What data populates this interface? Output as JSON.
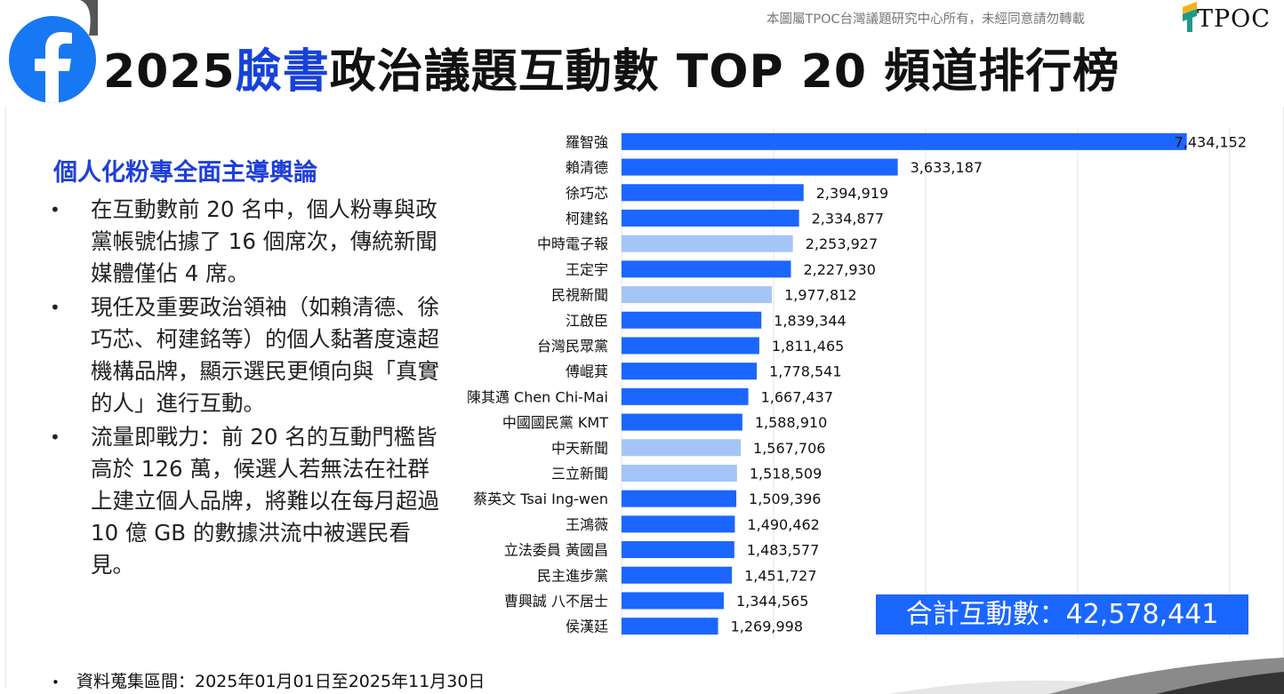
{
  "header": {
    "copyright": "本圖屬TPOC台灣議題研究中心所有，未經同意請勿轉載",
    "brand": "TPOC",
    "title_year": "2025",
    "title_highlight": "臉書",
    "title_rest": "政治議題互動數 TOP 20 頻道排行榜",
    "facebook_icon": "facebook-f-icon"
  },
  "summary": {
    "heading": "個人化粉專全面主導輿論",
    "bullet_symbol": "•",
    "bullets": [
      "在互動數前 20 名中，個人粉專與政黨帳號佔據了 16 個席次，傳統新聞媒體僅佔 4 席。",
      "現任及重要政治領袖（如賴清德、徐巧芯、柯建銘等）的個人黏著度遠超機構品牌，顯示選民更傾向與「真實的人」進行互動。",
      "流量即戰力：前 20 名的互動門檻皆高於 126 萬，候選人若無法在社群上建立個人品牌，將難以在每月超過 10 億 GB 的數據洪流中被選民看見。"
    ]
  },
  "footer": {
    "bullet_symbol": "•",
    "note": "資料蒐集區間：2025年01月01日至2025年11月30日"
  },
  "total": {
    "label": "合計互動數：",
    "value": "42,578,441"
  },
  "colors": {
    "person": "#1a66ff",
    "media": "#a5c5f7",
    "title_accent": "#1742d8",
    "total_box": "#1a66ff"
  },
  "chart_data": {
    "type": "bar",
    "orientation": "horizontal",
    "categories": [
      "羅智強",
      "賴清德",
      "徐巧芯",
      "柯建銘",
      "中時電子報",
      "王定宇",
      "民視新聞",
      "江啟臣",
      "台灣民眾黨",
      "傅崐萁",
      "陳其邁 Chen Chi-Mai",
      "中國國民黨 KMT",
      "中天新聞",
      "三立新聞",
      "蔡英文 Tsai Ing-wen",
      "王鴻薇",
      "立法委員 黃國昌",
      "民主進步黨",
      "曹興誠 八不居士",
      "侯漢廷"
    ],
    "values": [
      7434152,
      3633187,
      2394919,
      2334877,
      2253927,
      2227930,
      1977812,
      1839344,
      1811465,
      1778541,
      1667437,
      1588910,
      1567706,
      1518509,
      1509396,
      1490462,
      1483577,
      1451727,
      1344565,
      1269998
    ],
    "value_labels": [
      "7,434,152",
      "3,633,187",
      "2,394,919",
      "2,334,877",
      "2,253,927",
      "2,227,930",
      "1,977,812",
      "1,839,344",
      "1,811,465",
      "1,778,541",
      "1,667,437",
      "1,588,910",
      "1,567,706",
      "1,518,509",
      "1,509,396",
      "1,490,462",
      "1,483,577",
      "1,451,727",
      "1,344,565",
      "1,269,998"
    ],
    "is_media": [
      false,
      false,
      false,
      false,
      true,
      false,
      true,
      false,
      false,
      false,
      false,
      false,
      true,
      true,
      false,
      false,
      false,
      false,
      false,
      false
    ],
    "xlim": [
      0,
      8000000
    ],
    "grid": "vertical",
    "title": "",
    "xlabel": "",
    "ylabel": ""
  }
}
